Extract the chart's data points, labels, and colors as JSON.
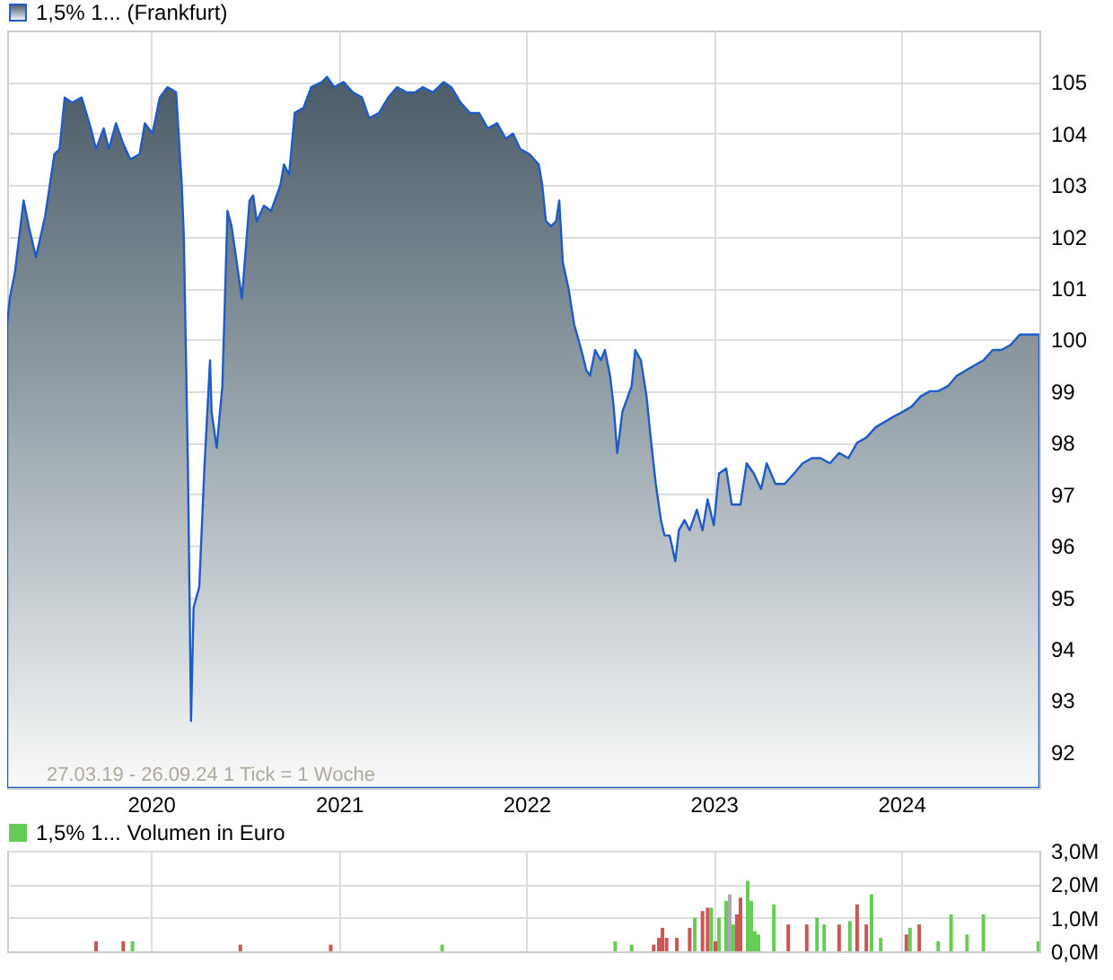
{
  "chart_data": [
    {
      "type": "area",
      "legend": "top left",
      "grid": true,
      "annotations": [
        "27.03.19 - 26.09.24   1 Tick = 1 Woche"
      ],
      "xlim": [
        "2019-03-27",
        "2024-09-26"
      ],
      "xticks": [
        {
          "value": "2020-01-01",
          "label": "2020"
        },
        {
          "value": "2021-01-01",
          "label": "2021"
        },
        {
          "value": "2022-01-01",
          "label": "2022"
        },
        {
          "value": "2023-01-01",
          "label": "2023"
        },
        {
          "value": "2024-01-01",
          "label": "2024"
        }
      ],
      "ylim": [
        91.3,
        106
      ],
      "yticks": [
        92,
        93,
        94,
        95,
        96,
        97,
        98,
        99,
        100,
        101,
        102,
        103,
        104,
        105
      ],
      "x": [
        "2019-03-27",
        "2019-04-01",
        "2019-04-11",
        "2019-04-28",
        "2019-05-08",
        "2019-05-22",
        "2019-06-09",
        "2019-06-27",
        "2019-07-07",
        "2019-07-17",
        "2019-08-01",
        "2019-08-19",
        "2019-09-06",
        "2019-09-16",
        "2019-10-01",
        "2019-10-11",
        "2019-10-25",
        "2019-11-08",
        "2019-11-22",
        "2019-12-10",
        "2019-12-20",
        "2020-01-04",
        "2020-01-18",
        "2020-02-02",
        "2020-02-19",
        "2020-03-01",
        "2020-03-05",
        "2020-03-10",
        "2020-03-13",
        "2020-03-17",
        "2020-03-19",
        "2020-03-24",
        "2020-04-04",
        "2020-04-11",
        "2020-04-14",
        "2020-04-25",
        "2020-04-28",
        "2020-05-08",
        "2020-05-19",
        "2020-05-29",
        "2020-06-06",
        "2020-06-16",
        "2020-06-26",
        "2020-07-11",
        "2020-07-18",
        "2020-07-25",
        "2020-08-08",
        "2020-08-22",
        "2020-09-09",
        "2020-09-16",
        "2020-09-26",
        "2020-10-07",
        "2020-10-24",
        "2020-11-08",
        "2020-11-29",
        "2020-12-09",
        "2020-12-23",
        "2021-01-10",
        "2021-01-28",
        "2021-02-15",
        "2021-03-01",
        "2021-03-20",
        "2021-04-07",
        "2021-04-24",
        "2021-05-12",
        "2021-05-29",
        "2021-06-13",
        "2021-07-03",
        "2021-07-24",
        "2021-08-08",
        "2021-08-26",
        "2021-09-13",
        "2021-10-01",
        "2021-10-18",
        "2021-11-05",
        "2021-11-22",
        "2021-12-06",
        "2021-12-20",
        "2022-01-07",
        "2022-01-25",
        "2022-02-01",
        "2022-02-08",
        "2022-02-18",
        "2022-02-28",
        "2022-03-06",
        "2022-03-13",
        "2022-03-24",
        "2022-04-04",
        "2022-04-18",
        "2022-04-28",
        "2022-05-05",
        "2022-05-15",
        "2022-05-26",
        "2022-06-03",
        "2022-06-13",
        "2022-06-20",
        "2022-06-27",
        "2022-07-07",
        "2022-07-25",
        "2022-08-01",
        "2022-08-12",
        "2022-08-23",
        "2022-08-30",
        "2022-09-10",
        "2022-09-20",
        "2022-09-27",
        "2022-10-07",
        "2022-10-18",
        "2022-10-25",
        "2022-11-05",
        "2022-11-15",
        "2022-11-29",
        "2022-12-10",
        "2022-12-20",
        "2023-01-01",
        "2023-01-11",
        "2023-01-25",
        "2023-02-05",
        "2023-02-22",
        "2023-03-06",
        "2023-03-20",
        "2023-04-03",
        "2023-04-14",
        "2023-05-01",
        "2023-05-19",
        "2023-06-06",
        "2023-06-23",
        "2023-07-11",
        "2023-07-28",
        "2023-08-15",
        "2023-09-02",
        "2023-09-20",
        "2023-10-07",
        "2023-10-25",
        "2023-11-12",
        "2023-11-29",
        "2023-12-16",
        "2024-01-04",
        "2024-01-21",
        "2024-02-08",
        "2024-02-26",
        "2024-03-13",
        "2024-04-01",
        "2024-04-18",
        "2024-05-05",
        "2024-05-22",
        "2024-06-09",
        "2024-06-27",
        "2024-07-14",
        "2024-08-01",
        "2024-08-19",
        "2024-09-06",
        "2024-09-26"
      ],
      "series": [
        {
          "name": "1,5% 1... (Frankfurt)",
          "color": "#1f5bc8",
          "values": [
            100.3,
            100.8,
            101.3,
            102.7,
            102.2,
            101.6,
            102.4,
            103.6,
            103.7,
            104.7,
            104.6,
            104.7,
            104.1,
            103.7,
            104.1,
            103.7,
            104.2,
            103.8,
            103.5,
            103.6,
            104.2,
            104.0,
            104.7,
            104.9,
            104.8,
            103.0,
            102.0,
            99.2,
            97.5,
            94.3,
            92.6,
            94.8,
            95.2,
            96.8,
            97.5,
            99.6,
            98.6,
            97.9,
            99.1,
            102.5,
            102.2,
            101.5,
            100.8,
            102.7,
            102.8,
            102.3,
            102.6,
            102.5,
            103.0,
            103.4,
            103.2,
            104.4,
            104.5,
            104.9,
            105.0,
            105.1,
            104.9,
            105.0,
            104.8,
            104.7,
            104.3,
            104.4,
            104.7,
            104.9,
            104.8,
            104.8,
            104.9,
            104.8,
            105.0,
            104.9,
            104.6,
            104.4,
            104.4,
            104.1,
            104.2,
            103.9,
            104.0,
            103.7,
            103.6,
            103.4,
            103.0,
            102.3,
            102.2,
            102.3,
            102.7,
            101.5,
            101.0,
            100.3,
            99.8,
            99.4,
            99.3,
            99.8,
            99.6,
            99.8,
            99.3,
            98.7,
            97.8,
            98.6,
            99.1,
            99.8,
            99.6,
            98.9,
            98.2,
            97.2,
            96.5,
            96.2,
            96.2,
            95.7,
            96.3,
            96.5,
            96.3,
            96.7,
            96.3,
            96.9,
            96.4,
            97.4,
            97.5,
            96.8,
            96.8,
            97.6,
            97.4,
            97.1,
            97.6,
            97.2,
            97.2,
            97.4,
            97.6,
            97.7,
            97.7,
            97.6,
            97.8,
            97.7,
            98.0,
            98.1,
            98.3,
            98.4,
            98.5,
            98.6,
            98.7,
            98.9,
            99.0,
            99.0,
            99.1,
            99.3,
            99.4,
            99.5,
            99.6,
            99.8,
            99.8,
            99.9,
            100.1,
            100.1,
            100.1
          ]
        }
      ]
    },
    {
      "type": "bar",
      "legend": "top left",
      "grid": true,
      "tick_labels": "y",
      "xlim": [
        "2019-03-27",
        "2024-09-26"
      ],
      "xticks": [
        {
          "value": "2020-01-01",
          "label": null
        },
        {
          "value": "2021-01-01",
          "label": null
        },
        {
          "value": "2022-01-01",
          "label": null
        },
        {
          "value": "2023-01-01",
          "label": null
        },
        {
          "value": "2024-01-01",
          "label": null
        }
      ],
      "ylim": [
        0,
        3
      ],
      "yticks": [
        {
          "value": 0,
          "label": "0,0M"
        },
        {
          "value": 1,
          "label": "1,0M"
        },
        {
          "value": 2,
          "label": "2,0M"
        },
        {
          "value": 3,
          "label": "3,0M"
        }
      ],
      "x": [
        "2019-09-16",
        "2019-11-08",
        "2019-11-26",
        "2020-06-23",
        "2020-12-16",
        "2021-07-21",
        "2022-06-23",
        "2022-07-25",
        "2022-09-06",
        "2022-09-16",
        "2022-09-23",
        "2022-10-01",
        "2022-10-21",
        "2022-11-15",
        "2022-11-25",
        "2022-12-10",
        "2022-12-20",
        "2022-12-27",
        "2023-01-04",
        "2023-01-11",
        "2023-01-25",
        "2023-02-01",
        "2023-02-08",
        "2023-02-15",
        "2023-02-22",
        "2023-03-08",
        "2023-03-15",
        "2023-03-22",
        "2023-03-29",
        "2023-04-28",
        "2023-05-26",
        "2023-07-01",
        "2023-07-21",
        "2023-08-04",
        "2023-09-02",
        "2023-09-23",
        "2023-10-07",
        "2023-10-25",
        "2023-11-04",
        "2023-11-22",
        "2024-01-11",
        "2024-01-18",
        "2024-02-05",
        "2024-03-13",
        "2024-04-07",
        "2024-05-08",
        "2024-06-09",
        "2024-09-24"
      ],
      "series": [
        {
          "name": "1,5% 1... Volumen in Euro",
          "color": "#66cc55",
          "colors": [
            "#cc5555",
            "#cc5555",
            "#66cc55",
            "#cc5555",
            "#cc5555",
            "#66cc55",
            "#66cc55",
            "#66cc55",
            "#cc5555",
            "#cc5555",
            "#cc5555",
            "#cc5555",
            "#cc5555",
            "#cc5555",
            "#66cc55",
            "#cc5555",
            "#cc5555",
            "#66cc55",
            "#cc5555",
            "#66cc55",
            "#66cc55",
            "#aaaaaa",
            "#66cc55",
            "#cc5555",
            "#cc5555",
            "#66cc55",
            "#66cc55",
            "#66cc55",
            "#66cc55",
            "#66cc55",
            "#cc5555",
            "#cc5555",
            "#66cc55",
            "#66cc55",
            "#cc5555",
            "#66cc55",
            "#cc5555",
            "#cc5555",
            "#66cc55",
            "#66cc55",
            "#cc5555",
            "#66cc55",
            "#cc5555",
            "#66cc55",
            "#66cc55",
            "#66cc55",
            "#66cc55",
            "#66cc55"
          ],
          "values": [
            0.3,
            0.3,
            0.3,
            0.2,
            0.2,
            0.2,
            0.3,
            0.2,
            0.2,
            0.4,
            0.7,
            0.4,
            0.4,
            0.7,
            1.0,
            1.2,
            1.3,
            1.3,
            0.3,
            1.0,
            1.5,
            1.7,
            0.8,
            1.1,
            1.6,
            2.1,
            1.5,
            0.6,
            0.5,
            1.4,
            0.8,
            0.8,
            1.0,
            0.8,
            0.8,
            0.9,
            1.4,
            0.8,
            1.7,
            0.4,
            0.5,
            0.7,
            0.8,
            0.3,
            1.1,
            0.5,
            1.1,
            0.3
          ]
        }
      ]
    }
  ]
}
